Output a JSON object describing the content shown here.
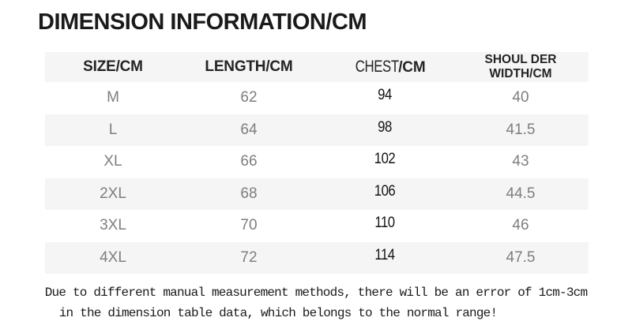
{
  "title": "DIMENSION INFORMATION/CM",
  "header": {
    "size": "SIZE/CM",
    "length": "LENGTH/CM",
    "chest_main": "CHEST",
    "chest_suffix": "/CM",
    "shoulder": "SHOUL DER WIDTH/CM"
  },
  "chart_data": {
    "type": "table",
    "title": "DIMENSION INFORMATION/CM",
    "columns": [
      "SIZE/CM",
      "LENGTH/CM",
      "CHEST/CM",
      "SHOUL DER WIDTH/CM"
    ],
    "rows": [
      [
        "M",
        "62",
        "94",
        "40"
      ],
      [
        "L",
        "64",
        "98",
        "41.5"
      ],
      [
        "XL",
        "66",
        "102",
        "43"
      ],
      [
        "2XL",
        "68",
        "106",
        "44.5"
      ],
      [
        "3XL",
        "70",
        "110",
        "46"
      ],
      [
        "4XL",
        "72",
        "114",
        "47.5"
      ]
    ],
    "units": "cm",
    "layout": "alternating-row-stripes, no gridlines, centered values"
  },
  "footer": {
    "line1": "Due to different manual measurement methods, there will be an error of 1cm-3cm",
    "line2": "in the dimension table data, which belongs to the normal range!"
  },
  "colors": {
    "row_alt_bg": "#f5f5f5",
    "body_text": "#7e7e7e",
    "chest_text": "#141414",
    "header_text": "#242424",
    "title_text": "#1a1a1a"
  }
}
